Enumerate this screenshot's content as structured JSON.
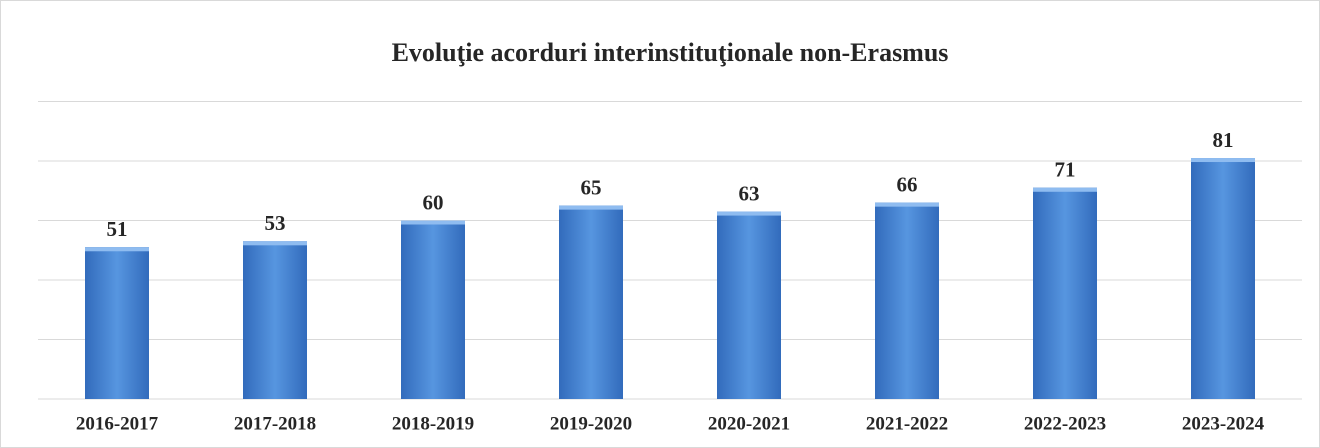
{
  "chart_data": {
    "type": "bar",
    "title": "Evoluţie acorduri interinstituţionale non-Erasmus",
    "categories": [
      "2016-2017",
      "2017-2018",
      "2018-2019",
      "2019-2020",
      "2020-2021",
      "2021-2022",
      "2022-2023",
      "2023-2024"
    ],
    "values": [
      51,
      53,
      60,
      65,
      63,
      66,
      71,
      81
    ],
    "color": "#4a86d6",
    "ylim": [
      0,
      100
    ],
    "yticks": [
      0,
      20,
      40,
      60,
      80,
      100
    ],
    "grid": true
  }
}
